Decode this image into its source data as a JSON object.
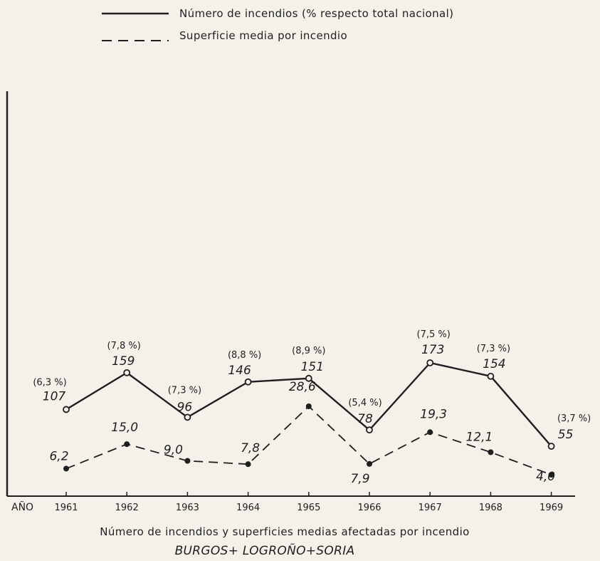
{
  "chart_data": {
    "type": "line",
    "x": [
      "1961",
      "1962",
      "1963",
      "1964",
      "1965",
      "1966",
      "1967",
      "1968",
      "1969"
    ],
    "xlabel": "AÑO",
    "series": [
      {
        "name": "Número de incendios (% respecto total nacional)",
        "style": "solid",
        "marker": "open-circle",
        "values": [
          107,
          159,
          96,
          146,
          151,
          78,
          173,
          154,
          55
        ],
        "labels": [
          "107",
          "159",
          "96",
          "146",
          "151",
          "78",
          "173",
          "154",
          "55"
        ],
        "pct_labels": [
          "(6,3 %)",
          "(7,8 %)",
          "(7,3 %)",
          "(8,8 %)",
          "(8,9 %)",
          "(5,4 %)",
          "(7,5 %)",
          "(7,3 %)",
          "(3,7 %)"
        ]
      },
      {
        "name": "Superficie media por incendio",
        "style": "dashed",
        "marker": "filled-circle",
        "values": [
          6.2,
          15.0,
          9.0,
          7.8,
          28.6,
          7.9,
          19.3,
          12.1,
          4.0
        ],
        "labels": [
          "6,2",
          "15,0",
          "9,0",
          "7,8",
          "28,6",
          "7,9",
          "19,3",
          "12,1",
          "4,0"
        ]
      }
    ],
    "legend_position": "top",
    "grid": false,
    "caption": "Número de incendios y superficies medias afectadas por incendio",
    "subcaption": "BURGOS+ LOGROÑO+SORIA"
  },
  "colors": {
    "background": "#f4f1ea",
    "ink": "#1f1f1f"
  }
}
